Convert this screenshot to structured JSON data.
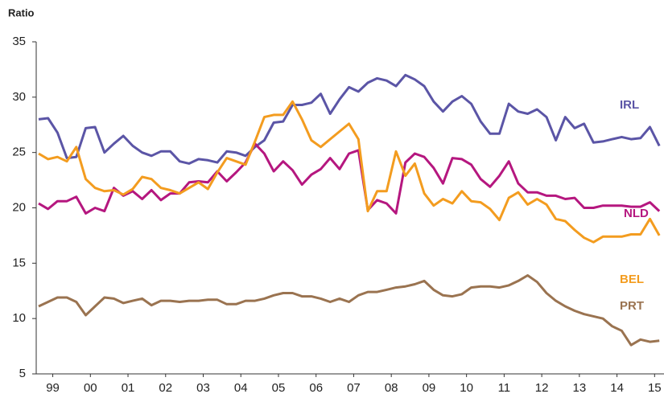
{
  "chart_data": {
    "type": "line",
    "y_label": "Ratio",
    "x": [
      1999.125,
      1999.375,
      1999.625,
      1999.875,
      2000.125,
      2000.375,
      2000.625,
      2000.875,
      2001.125,
      2001.375,
      2001.625,
      2001.875,
      2002.125,
      2002.375,
      2002.625,
      2002.875,
      2003.125,
      2003.375,
      2003.625,
      2003.875,
      2004.125,
      2004.375,
      2004.625,
      2004.875,
      2005.125,
      2005.375,
      2005.625,
      2005.875,
      2006.125,
      2006.375,
      2006.625,
      2006.875,
      2007.125,
      2007.375,
      2007.625,
      2007.875,
      2008.125,
      2008.375,
      2008.625,
      2008.875,
      2009.125,
      2009.375,
      2009.625,
      2009.875,
      2010.125,
      2010.375,
      2010.625,
      2010.875,
      2011.125,
      2011.375,
      2011.625,
      2011.875,
      2012.125,
      2012.375,
      2012.625,
      2012.875,
      2013.125,
      2013.375,
      2013.625,
      2013.875,
      2014.125,
      2014.375,
      2014.625,
      2014.875,
      2015.125,
      2015.375,
      2015.625
    ],
    "series": [
      {
        "name": "IRL",
        "color": "#5b55a6",
        "values": [
          28.0,
          28.1,
          26.8,
          24.5,
          24.6,
          27.2,
          27.3,
          25.0,
          25.8,
          26.5,
          25.6,
          25.0,
          24.7,
          25.1,
          25.1,
          24.2,
          24.0,
          24.4,
          24.3,
          24.1,
          25.1,
          25.0,
          24.7,
          25.5,
          26.1,
          27.7,
          27.8,
          29.3,
          29.3,
          29.5,
          30.3,
          28.5,
          29.8,
          30.9,
          30.5,
          31.3,
          31.7,
          31.5,
          31.0,
          32.0,
          31.6,
          31.0,
          29.6,
          28.7,
          29.6,
          30.1,
          29.4,
          27.8,
          26.7,
          26.7,
          29.4,
          28.7,
          28.5,
          28.9,
          28.2,
          26.1,
          28.2,
          27.2,
          27.6,
          25.9,
          26.0,
          26.2,
          26.4,
          26.2,
          26.3,
          27.3,
          25.6
        ]
      },
      {
        "name": "NLD",
        "color": "#b5177f",
        "values": [
          20.4,
          19.9,
          20.6,
          20.6,
          21.0,
          19.5,
          20.0,
          19.7,
          21.8,
          21.1,
          21.5,
          20.8,
          21.6,
          20.7,
          21.3,
          21.3,
          22.3,
          22.4,
          22.3,
          23.3,
          22.4,
          23.2,
          24.1,
          25.8,
          24.9,
          23.3,
          24.2,
          23.4,
          22.1,
          23.0,
          23.5,
          24.5,
          23.5,
          24.9,
          25.2,
          19.8,
          20.7,
          20.4,
          19.5,
          24.1,
          24.9,
          24.6,
          23.6,
          22.2,
          24.5,
          24.4,
          23.9,
          22.6,
          21.9,
          22.9,
          24.2,
          22.2,
          21.4,
          21.4,
          21.1,
          21.1,
          20.8,
          20.9,
          20.0,
          20.0,
          20.2,
          20.2,
          20.2,
          20.1,
          20.1,
          20.5,
          19.7
        ]
      },
      {
        "name": "BEL",
        "color": "#f39c1f",
        "values": [
          24.9,
          24.4,
          24.6,
          24.2,
          25.5,
          22.6,
          21.8,
          21.5,
          21.6,
          21.2,
          21.7,
          22.8,
          22.6,
          21.8,
          21.6,
          21.3,
          21.8,
          22.3,
          21.7,
          23.2,
          24.5,
          24.2,
          23.9,
          26.0,
          28.2,
          28.4,
          28.4,
          29.6,
          28.0,
          26.1,
          25.5,
          26.2,
          26.9,
          27.6,
          26.2,
          19.7,
          21.5,
          21.5,
          25.1,
          22.9,
          24.0,
          21.3,
          20.2,
          20.8,
          20.4,
          21.5,
          20.6,
          20.5,
          19.9,
          18.9,
          20.9,
          21.4,
          20.3,
          20.8,
          20.3,
          19.0,
          18.8,
          18.0,
          17.3,
          16.9,
          17.4,
          17.4,
          17.4,
          17.6,
          17.6,
          19.0,
          17.5
        ]
      },
      {
        "name": "PRT",
        "color": "#9a7350",
        "values": [
          11.1,
          11.5,
          11.9,
          11.9,
          11.5,
          10.3,
          11.1,
          11.9,
          11.8,
          11.4,
          11.6,
          11.8,
          11.2,
          11.6,
          11.6,
          11.5,
          11.6,
          11.6,
          11.7,
          11.7,
          11.3,
          11.3,
          11.6,
          11.6,
          11.8,
          12.1,
          12.3,
          12.3,
          12.0,
          12.0,
          11.8,
          11.5,
          11.8,
          11.5,
          12.1,
          12.4,
          12.4,
          12.6,
          12.8,
          12.9,
          13.1,
          13.4,
          12.6,
          12.1,
          12.0,
          12.2,
          12.8,
          12.9,
          12.9,
          12.8,
          13.0,
          13.4,
          13.9,
          13.3,
          12.3,
          11.6,
          11.1,
          10.7,
          10.4,
          10.2,
          10.0,
          9.3,
          8.9,
          7.6,
          8.1,
          7.9,
          8.0
        ]
      }
    ],
    "xlim": [
      1999.06,
      2015.75
    ],
    "xticks": [
      {
        "value": 1999.5,
        "label": "99"
      },
      {
        "value": 2000.5,
        "label": "00"
      },
      {
        "value": 2001.5,
        "label": "01"
      },
      {
        "value": 2002.5,
        "label": "02"
      },
      {
        "value": 2003.5,
        "label": "03"
      },
      {
        "value": 2004.5,
        "label": "04"
      },
      {
        "value": 2005.5,
        "label": "05"
      },
      {
        "value": 2006.5,
        "label": "06"
      },
      {
        "value": 2007.5,
        "label": "07"
      },
      {
        "value": 2008.5,
        "label": "08"
      },
      {
        "value": 2009.5,
        "label": "09"
      },
      {
        "value": 2010.5,
        "label": "10"
      },
      {
        "value": 2011.5,
        "label": "11"
      },
      {
        "value": 2012.5,
        "label": "12"
      },
      {
        "value": 2013.5,
        "label": "13"
      },
      {
        "value": 2014.5,
        "label": "14"
      },
      {
        "value": 2015.5,
        "label": "15"
      }
    ],
    "ylim": [
      5,
      35
    ],
    "yticks": [
      5,
      10,
      15,
      20,
      25,
      30,
      35
    ]
  }
}
